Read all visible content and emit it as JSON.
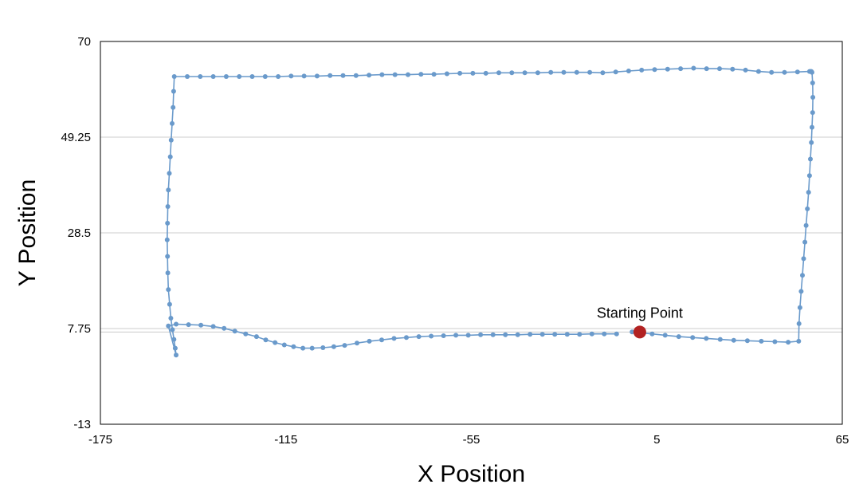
{
  "chart_data": {
    "type": "scatter",
    "title": "",
    "xlabel": "X Position",
    "ylabel": "Y Position",
    "xlim": [
      -175,
      65
    ],
    "ylim": [
      -13,
      70
    ],
    "x_ticks": [
      "-175",
      "-115",
      "-55",
      "5",
      "65"
    ],
    "y_ticks": [
      "70",
      "49.25",
      "28.5",
      "7.75",
      "-13"
    ],
    "y_reference_line": 7,
    "grid": true,
    "legend": "none",
    "colors": {
      "series": "#6a9acb",
      "start": "#b22222",
      "grid": "#cccccc"
    },
    "series": [
      {
        "x": [
          -3,
          -0.3,
          3.5,
          7.7,
          12.1,
          16.6,
          21,
          25.5,
          29.9,
          34.3,
          38.8,
          43.2,
          47.5,
          50.9,
          51,
          51.3,
          51.7,
          52.1,
          52.5,
          52.9,
          53.3,
          53.7,
          54.1,
          54.4,
          54.7,
          55,
          55.2,
          55.4,
          55.5,
          55.4,
          55.2,
          55,
          54.8,
          54.4,
          50.5,
          46.3,
          42.1,
          37.9,
          33.7,
          29.5,
          25.3,
          21.1,
          16.9,
          12.7,
          8.5,
          4.3,
          0.1,
          -4.1,
          -8.3,
          -12.5,
          -16.7,
          -20.9,
          -25.1,
          -29.3,
          -33.5,
          -37.7,
          -41.9,
          -46.1,
          -50.3,
          -54.5,
          -58.7,
          -62.9,
          -67.1,
          -71.3,
          -75.5,
          -79.7,
          -83.9,
          -88.1,
          -92.3,
          -96.5,
          -100.7,
          -104.9,
          -109.1,
          -113.3,
          -117.5,
          -121.7,
          -125.9,
          -130.1,
          -134.3,
          -138.5,
          -142.7,
          -146.9,
          -151.1,
          -151.3,
          -151.5,
          -151.8,
          -152.1,
          -152.4,
          -152.7,
          -153,
          -153.2,
          -153.3,
          -153.4,
          -153.3,
          -153.2,
          -153,
          -152.6,
          -152.2,
          -151.7,
          -151.2,
          -150.8,
          -150.5,
          -153,
          -150.5,
          -146.5,
          -142.5,
          -138.5,
          -135,
          -131.5,
          -128,
          -124.5,
          -121.5,
          -118.5,
          -115.5,
          -112.5,
          -109.5,
          -106.5,
          -103,
          -99.5,
          -96,
          -92,
          -88,
          -84,
          -80,
          -76,
          -72,
          -68,
          -64,
          -60,
          -56,
          -52,
          -48,
          -44,
          -40,
          -36,
          -32,
          -28,
          -24,
          -20,
          -16,
          -12,
          -8
        ],
        "y": [
          7,
          6.8,
          6.6,
          6.3,
          6,
          5.8,
          5.6,
          5.4,
          5.2,
          5.1,
          5,
          4.9,
          4.8,
          5,
          8.8,
          12.3,
          15.8,
          19.3,
          22.9,
          26.5,
          30.1,
          33.7,
          37.3,
          40.9,
          44.5,
          48.1,
          51.4,
          54.6,
          57.9,
          61,
          63.3,
          63.5,
          63.5,
          63.5,
          63.4,
          63.3,
          63.3,
          63.5,
          63.8,
          64,
          64.1,
          64.1,
          64.2,
          64.1,
          64,
          63.9,
          63.8,
          63.6,
          63.4,
          63.2,
          63.3,
          63.3,
          63.3,
          63.3,
          63.2,
          63.2,
          63.2,
          63.2,
          63.1,
          63.1,
          63.1,
          63,
          62.9,
          62.9,
          62.8,
          62.8,
          62.8,
          62.7,
          62.6,
          62.6,
          62.6,
          62.5,
          62.5,
          62.5,
          62.4,
          62.4,
          62.4,
          62.4,
          62.4,
          62.4,
          62.4,
          62.4,
          62.4,
          59.2,
          55.7,
          52.2,
          48.6,
          45,
          41.4,
          37.8,
          34.2,
          30.6,
          27,
          23.4,
          19.8,
          16.2,
          13,
          10,
          7.5,
          5.4,
          3.5,
          2,
          8.3,
          8.7,
          8.6,
          8.5,
          8.2,
          7.8,
          7.2,
          6.6,
          6,
          5.3,
          4.7,
          4.2,
          3.8,
          3.5,
          3.5,
          3.6,
          3.8,
          4.1,
          4.6,
          5,
          5.3,
          5.6,
          5.8,
          6,
          6.1,
          6.2,
          6.3,
          6.3,
          6.4,
          6.4,
          6.4,
          6.4,
          6.5,
          6.5,
          6.5,
          6.5,
          6.5,
          6.6,
          6.6,
          6.6
        ]
      }
    ],
    "start_point": {
      "x": -0.5,
      "y": 7,
      "label": "Starting Point"
    }
  }
}
